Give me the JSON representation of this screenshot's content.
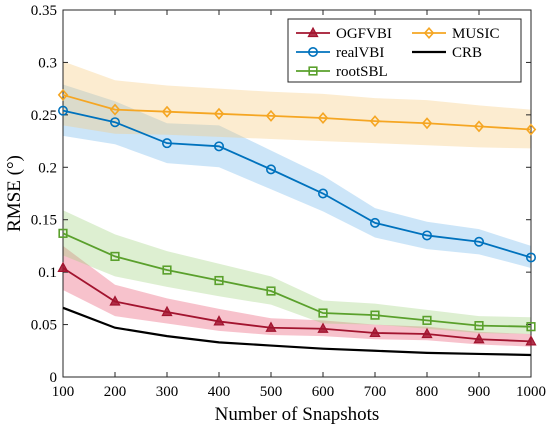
{
  "chart_data": {
    "type": "line",
    "title": "",
    "xlabel": "Number of Snapshots",
    "ylabel": "RMSE (°)",
    "xlim": [
      100,
      1000
    ],
    "ylim": [
      0,
      0.35
    ],
    "xticks": [
      "100",
      "200",
      "300",
      "400",
      "500",
      "600",
      "700",
      "800",
      "900",
      "1000"
    ],
    "yticks": [
      "0",
      "0.05",
      "0.1",
      "0.15",
      "0.2",
      "0.25",
      "0.3",
      "0.35"
    ],
    "x": [
      100,
      200,
      300,
      400,
      500,
      600,
      700,
      800,
      900,
      1000
    ],
    "legend_position": "top-right",
    "grid": false,
    "series": [
      {
        "name": "OGFVBI",
        "color": "#a2142f",
        "band_color": "#e8506e",
        "marker": "triangle",
        "values": [
          0.104,
          0.072,
          0.062,
          0.053,
          0.047,
          0.046,
          0.042,
          0.041,
          0.036,
          0.034
        ],
        "band_lower": [
          0.083,
          0.058,
          0.051,
          0.044,
          0.04,
          0.039,
          0.036,
          0.035,
          0.031,
          0.029
        ],
        "band_upper": [
          0.125,
          0.088,
          0.075,
          0.065,
          0.056,
          0.054,
          0.05,
          0.048,
          0.043,
          0.041
        ]
      },
      {
        "name": "realVBI",
        "color": "#0072bd",
        "band_color": "#6cb4ea",
        "marker": "circle",
        "values": [
          0.254,
          0.243,
          0.223,
          0.22,
          0.198,
          0.175,
          0.147,
          0.135,
          0.129,
          0.114
        ],
        "band_lower": [
          0.23,
          0.222,
          0.204,
          0.2,
          0.179,
          0.158,
          0.133,
          0.122,
          0.117,
          0.104
        ],
        "band_upper": [
          0.279,
          0.263,
          0.242,
          0.24,
          0.216,
          0.192,
          0.161,
          0.148,
          0.141,
          0.125
        ]
      },
      {
        "name": "rootSBL",
        "color": "#5aa02c",
        "band_color": "#9ed07a",
        "marker": "square",
        "values": [
          0.137,
          0.115,
          0.102,
          0.092,
          0.082,
          0.061,
          0.059,
          0.054,
          0.049,
          0.048
        ],
        "band_lower": [
          0.116,
          0.096,
          0.086,
          0.077,
          0.069,
          0.051,
          0.05,
          0.046,
          0.042,
          0.041
        ],
        "band_upper": [
          0.159,
          0.136,
          0.12,
          0.108,
          0.096,
          0.073,
          0.07,
          0.064,
          0.058,
          0.057
        ]
      },
      {
        "name": "MUSIC",
        "color": "#f5a623",
        "band_color": "#f7c878",
        "marker": "diamond",
        "values": [
          0.269,
          0.255,
          0.253,
          0.251,
          0.249,
          0.247,
          0.244,
          0.242,
          0.239,
          0.236
        ],
        "band_lower": [
          0.24,
          0.232,
          0.231,
          0.229,
          0.227,
          0.225,
          0.223,
          0.221,
          0.219,
          0.218
        ],
        "band_upper": [
          0.301,
          0.283,
          0.278,
          0.275,
          0.272,
          0.27,
          0.266,
          0.264,
          0.259,
          0.255
        ]
      },
      {
        "name": "CRB",
        "color": "#000000",
        "marker": "none",
        "values": [
          0.066,
          0.047,
          0.039,
          0.033,
          0.03,
          0.027,
          0.025,
          0.023,
          0.022,
          0.021
        ]
      }
    ]
  }
}
